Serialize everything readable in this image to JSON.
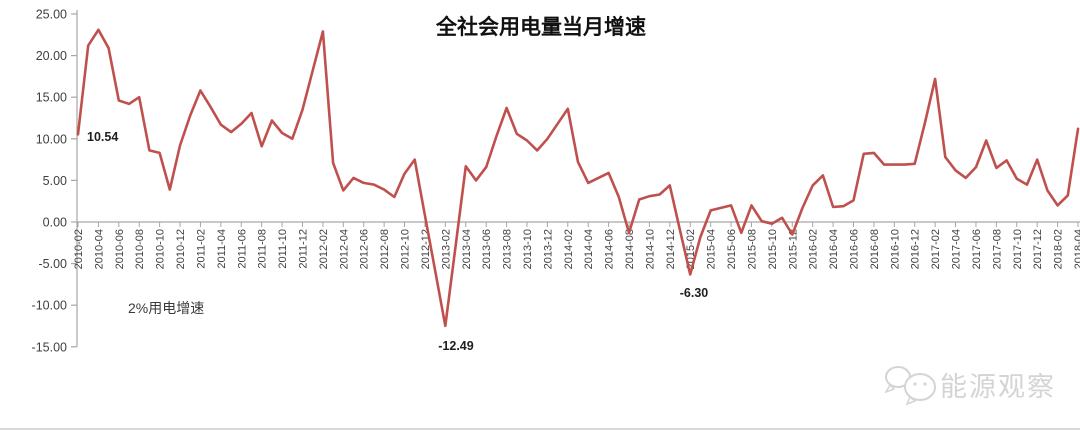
{
  "title": "全社会用电量当月增速",
  "annotations": {
    "first_point": "10.54",
    "min_2013": "-12.49",
    "min_2015": "-6.30",
    "note": "2%用电增速"
  },
  "watermark": {
    "text": "能源观察",
    "icon": "wechat-icon"
  },
  "colors": {
    "line": "#c0504d",
    "axis": "#a6a6a6",
    "tick_label": "#404040",
    "annotation": "#1f1f1f",
    "watermark": "#d4d4d4",
    "bottom_border": "#b3b3b3"
  },
  "chart_data": {
    "type": "line",
    "title": "全社会用电量当月增速",
    "xlabel": "",
    "ylabel": "",
    "ylim": [
      -15,
      25
    ],
    "ytick_step": 5,
    "ytick_labels": [
      "25.00",
      "20.00",
      "15.00",
      "10.00",
      "5.00",
      "0.00",
      "-5.00",
      "-10.00",
      "-15.00"
    ],
    "xtick_interval": 2,
    "grid": false,
    "legend_position": "none",
    "x": [
      "2010-02",
      "2010-03",
      "2010-04",
      "2010-05",
      "2010-06",
      "2010-07",
      "2010-08",
      "2010-09",
      "2010-10",
      "2010-11",
      "2010-12",
      "2011-01",
      "2011-02",
      "2011-03",
      "2011-04",
      "2011-05",
      "2011-06",
      "2011-07",
      "2011-08",
      "2011-09",
      "2011-10",
      "2011-11",
      "2011-12",
      "2012-01",
      "2012-02",
      "2012-03",
      "2012-04",
      "2012-05",
      "2012-06",
      "2012-07",
      "2012-08",
      "2012-09",
      "2012-10",
      "2012-11",
      "2012-12",
      "2013-01",
      "2013-02",
      "2013-03",
      "2013-04",
      "2013-05",
      "2013-06",
      "2013-07",
      "2013-08",
      "2013-09",
      "2013-10",
      "2013-11",
      "2013-12",
      "2014-01",
      "2014-02",
      "2014-03",
      "2014-04",
      "2014-05",
      "2014-06",
      "2014-07",
      "2014-08",
      "2014-09",
      "2014-10",
      "2014-11",
      "2014-12",
      "2015-01",
      "2015-02",
      "2015-03",
      "2015-04",
      "2015-05",
      "2015-06",
      "2015-07",
      "2015-08",
      "2015-09",
      "2015-10",
      "2015-11",
      "2015-12",
      "2016-01",
      "2016-02",
      "2016-03",
      "2016-04",
      "2016-05",
      "2016-06",
      "2016-07",
      "2016-08",
      "2016-09",
      "2016-10",
      "2016-11",
      "2016-12",
      "2017-01",
      "2017-02",
      "2017-03",
      "2017-04",
      "2017-05",
      "2017-06",
      "2017-07",
      "2017-08",
      "2017-09",
      "2017-10",
      "2017-11",
      "2017-12",
      "2018-01",
      "2018-02",
      "2018-03",
      "2018-04"
    ],
    "series": [
      {
        "name": "全社会用电量当月增速",
        "values": [
          10.54,
          21.2,
          23.1,
          20.9,
          14.6,
          14.2,
          15.0,
          8.6,
          8.3,
          3.9,
          9.2,
          12.8,
          15.8,
          13.8,
          11.7,
          10.8,
          11.8,
          13.1,
          9.1,
          12.2,
          10.7,
          10.0,
          13.5,
          18.2,
          22.9,
          7.1,
          3.8,
          5.3,
          4.7,
          4.5,
          3.9,
          3.0,
          5.8,
          7.5,
          0.8,
          -5.8,
          -12.49,
          -2.9,
          6.7,
          5.0,
          6.6,
          10.3,
          13.7,
          10.6,
          9.8,
          8.6,
          10.0,
          11.8,
          13.6,
          7.2,
          4.7,
          5.3,
          5.9,
          3.0,
          -1.3,
          2.7,
          3.1,
          3.3,
          4.4,
          -1.0,
          -6.3,
          -1.8,
          1.4,
          1.7,
          2.0,
          -1.3,
          2.0,
          0.1,
          -0.2,
          0.5,
          -1.5,
          1.7,
          4.4,
          5.6,
          1.8,
          1.9,
          2.6,
          8.2,
          8.3,
          6.9,
          6.9,
          6.9,
          7.0,
          11.9,
          17.2,
          7.8,
          6.2,
          5.3,
          6.6,
          9.8,
          6.5,
          7.4,
          5.2,
          4.5,
          7.5,
          3.8,
          2.0,
          3.2,
          11.2
        ]
      }
    ]
  }
}
